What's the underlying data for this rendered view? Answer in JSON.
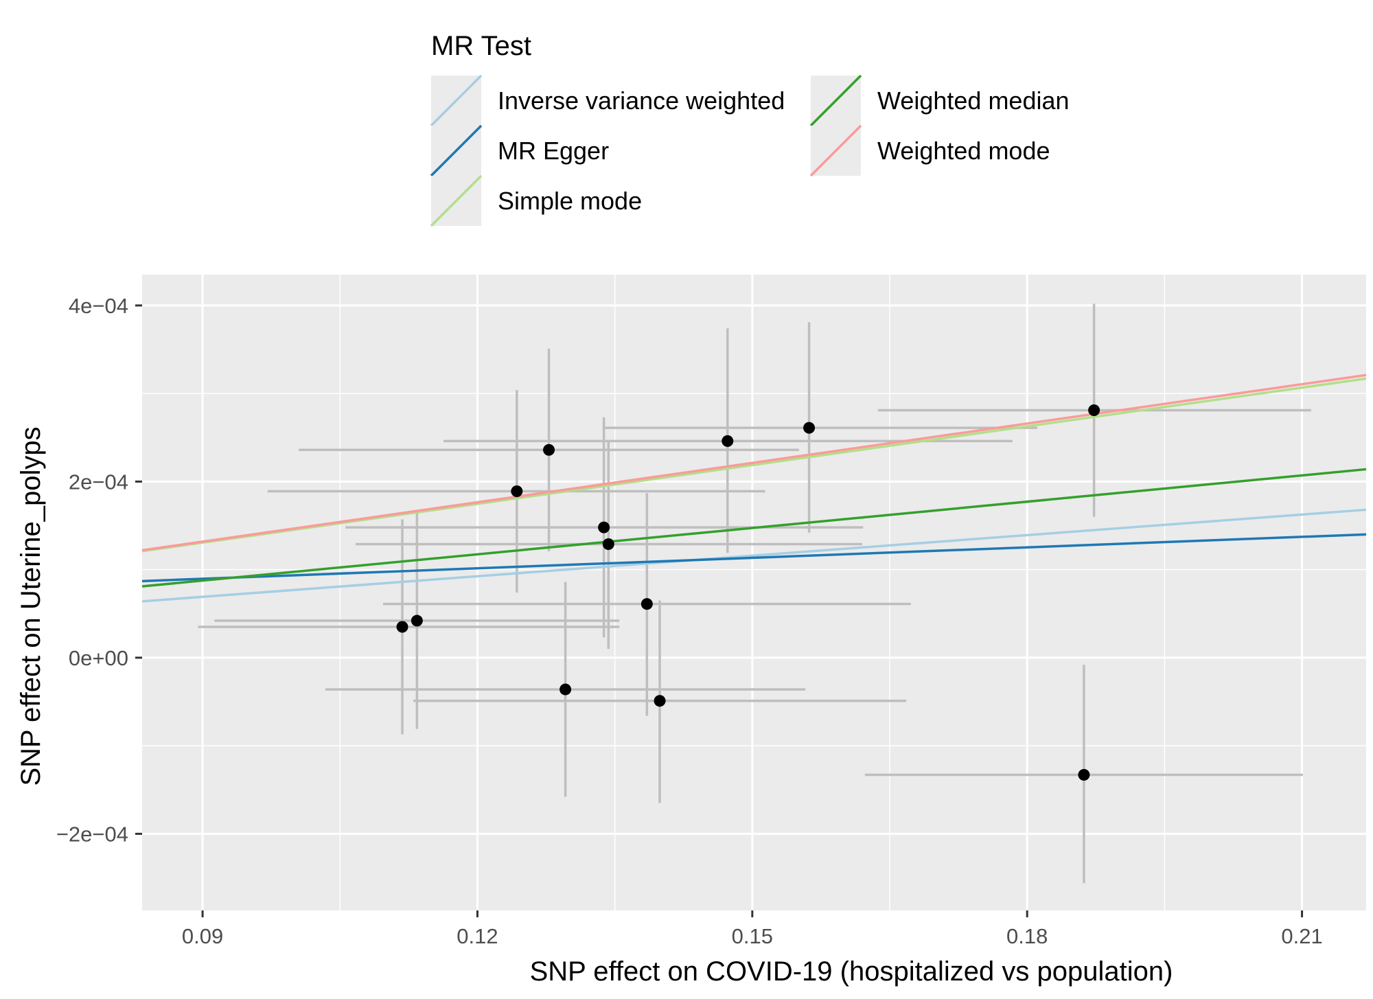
{
  "chart_data": {
    "type": "scatter",
    "title": "",
    "xlabel": "SNP effect on  COVID-19 (hospitalized vs population)",
    "ylabel": "SNP effect on Uterine_polyps",
    "xlim": [
      0.0834,
      0.217
    ],
    "ylim": [
      -0.000287,
      0.000435
    ],
    "x_ticks": [
      0.09,
      0.12,
      0.15,
      0.18,
      0.21
    ],
    "x_tick_labels": [
      "0.09",
      "0.12",
      "0.15",
      "0.18",
      "0.21"
    ],
    "y_ticks": [
      0.0004,
      0.0002,
      0,
      -0.0002
    ],
    "y_tick_labels": [
      "4e−04",
      "2e−04",
      "0e+00",
      "−2e−04"
    ],
    "grid": true,
    "legend": {
      "title": "MR Test",
      "placement": "top",
      "entries": [
        {
          "label": "Inverse variance weighted",
          "color": "#a6cee3"
        },
        {
          "label": "MR Egger",
          "color": "#1f78b4"
        },
        {
          "label": "Simple mode",
          "color": "#b2df8a"
        },
        {
          "label": "Weighted median",
          "color": "#33a02c"
        },
        {
          "label": "Weighted mode",
          "color": "#fb9a99"
        }
      ]
    },
    "points": [
      {
        "x": 0.1118,
        "y": 3.5e-05,
        "x_lo": 0.0895,
        "x_hi": 0.1355,
        "y_lo": -8.7e-05,
        "y_hi": 0.000157
      },
      {
        "x": 0.1134,
        "y": 4.2e-05,
        "x_lo": 0.0913,
        "x_hi": 0.1355,
        "y_lo": -8.1e-05,
        "y_hi": 0.000164
      },
      {
        "x": 0.1243,
        "y": 0.000189,
        "x_lo": 0.0971,
        "x_hi": 0.1514,
        "y_lo": 7.4e-05,
        "y_hi": 0.000304
      },
      {
        "x": 0.1278,
        "y": 0.000236,
        "x_lo": 0.1005,
        "x_hi": 0.1551,
        "y_lo": 0.000121,
        "y_hi": 0.000351
      },
      {
        "x": 0.1296,
        "y": -3.6e-05,
        "x_lo": 0.1034,
        "x_hi": 0.1558,
        "y_lo": -0.000158,
        "y_hi": 8.6e-05
      },
      {
        "x": 0.1338,
        "y": 0.000148,
        "x_lo": 0.1056,
        "x_hi": 0.1621,
        "y_lo": 2.3e-05,
        "y_hi": 0.000273
      },
      {
        "x": 0.1343,
        "y": 0.000129,
        "x_lo": 0.1067,
        "x_hi": 0.162,
        "y_lo": 1e-05,
        "y_hi": 0.000245
      },
      {
        "x": 0.1385,
        "y": 6.1e-05,
        "x_lo": 0.1097,
        "x_hi": 0.1673,
        "y_lo": -6.6e-05,
        "y_hi": 0.000187
      },
      {
        "x": 0.1399,
        "y": -4.9e-05,
        "x_lo": 0.113,
        "x_hi": 0.1668,
        "y_lo": -0.000165,
        "y_hi": 6.5e-05
      },
      {
        "x": 0.1473,
        "y": 0.000246,
        "x_lo": 0.1163,
        "x_hi": 0.1784,
        "y_lo": 0.000119,
        "y_hi": 0.000374
      },
      {
        "x": 0.1562,
        "y": 0.000261,
        "x_lo": 0.1338,
        "x_hi": 0.1811,
        "y_lo": 0.000142,
        "y_hi": 0.000381
      },
      {
        "x": 0.1862,
        "y": -0.000133,
        "x_lo": 0.1623,
        "x_hi": 0.2101,
        "y_lo": -0.000256,
        "y_hi": -8e-06
      },
      {
        "x": 0.1873,
        "y": 0.000281,
        "x_lo": 0.1637,
        "x_hi": 0.211,
        "y_lo": 0.00016,
        "y_hi": 0.000402
      }
    ],
    "lines": [
      {
        "name": "Inverse variance weighted",
        "color": "#a6cee3",
        "x": [
          0.0834,
          0.217
        ],
        "y": [
          6.4e-05,
          0.000168
        ]
      },
      {
        "name": "MR Egger",
        "color": "#1f78b4",
        "x": [
          0.0834,
          0.217
        ],
        "y": [
          8.7e-05,
          0.00014
        ]
      },
      {
        "name": "Simple mode",
        "color": "#b2df8a",
        "x": [
          0.0834,
          0.217
        ],
        "y": [
          0.000121,
          0.000317
        ]
      },
      {
        "name": "Weighted median",
        "color": "#33a02c",
        "x": [
          0.0834,
          0.217
        ],
        "y": [
          8.1e-05,
          0.000214
        ]
      },
      {
        "name": "Weighted mode",
        "color": "#fb9a99",
        "x": [
          0.0834,
          0.217
        ],
        "y": [
          0.000122,
          0.000321
        ]
      }
    ]
  }
}
